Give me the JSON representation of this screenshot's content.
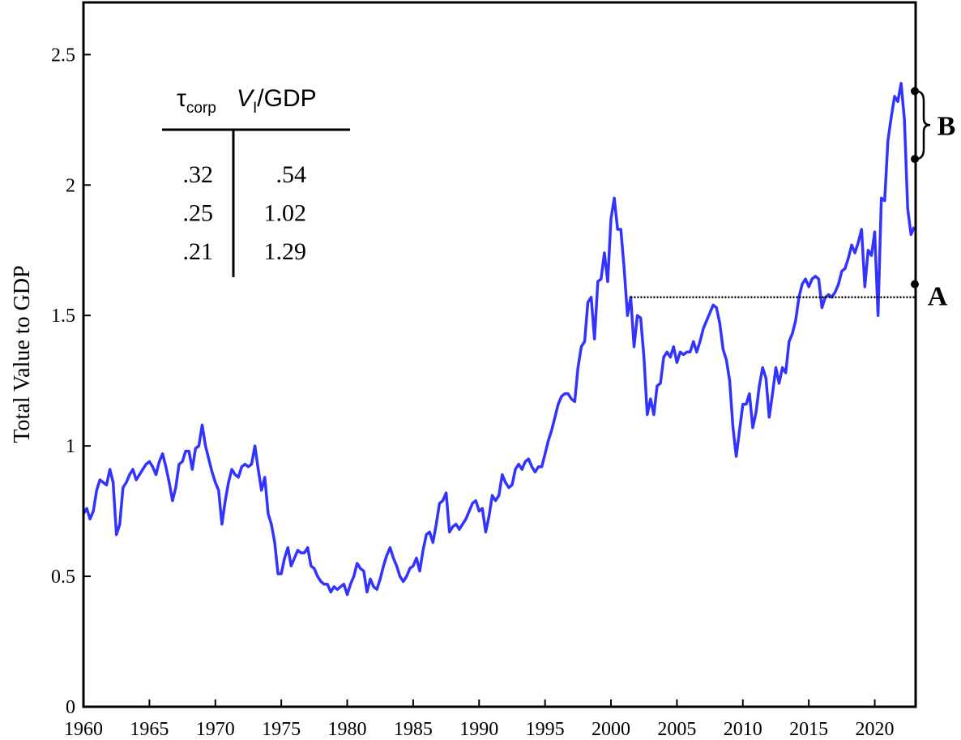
{
  "chart_data": {
    "type": "line",
    "y_label": "Total Value to GDP",
    "color": "#3333ff",
    "xlim": [
      1960,
      2023.1
    ],
    "ylim": [
      0,
      2.7
    ],
    "xticks": [
      1960,
      1965,
      1970,
      1975,
      1980,
      1985,
      1990,
      1995,
      2000,
      2005,
      2010,
      2015,
      2020
    ],
    "yticks": [
      0,
      0.5,
      1,
      1.5,
      2,
      2.5
    ],
    "x": [
      1960,
      1960.25,
      1960.5,
      1960.75,
      1961,
      1961.25,
      1961.5,
      1961.75,
      1962,
      1962.25,
      1962.5,
      1962.75,
      1963,
      1963.25,
      1963.5,
      1963.75,
      1964,
      1964.25,
      1964.5,
      1964.75,
      1965,
      1965.25,
      1965.5,
      1965.75,
      1966,
      1966.25,
      1966.5,
      1966.75,
      1967,
      1967.25,
      1967.5,
      1967.75,
      1968,
      1968.25,
      1968.5,
      1968.75,
      1969,
      1969.25,
      1969.5,
      1969.75,
      1970,
      1970.25,
      1970.5,
      1970.75,
      1971,
      1971.25,
      1971.5,
      1971.75,
      1972,
      1972.25,
      1972.5,
      1972.75,
      1973,
      1973.25,
      1973.5,
      1973.75,
      1974,
      1974.25,
      1974.5,
      1974.75,
      1975,
      1975.25,
      1975.5,
      1975.75,
      1976,
      1976.25,
      1976.5,
      1976.75,
      1977,
      1977.25,
      1977.5,
      1977.75,
      1978,
      1978.25,
      1978.5,
      1978.75,
      1979,
      1979.25,
      1979.5,
      1979.75,
      1980,
      1980.25,
      1980.5,
      1980.75,
      1981,
      1981.25,
      1981.5,
      1981.75,
      1982,
      1982.25,
      1982.5,
      1982.75,
      1983,
      1983.25,
      1983.5,
      1983.75,
      1984,
      1984.25,
      1984.5,
      1984.75,
      1985,
      1985.25,
      1985.5,
      1985.75,
      1986,
      1986.25,
      1986.5,
      1986.75,
      1987,
      1987.25,
      1987.5,
      1987.75,
      1988,
      1988.25,
      1988.5,
      1988.75,
      1989,
      1989.25,
      1989.5,
      1989.75,
      1990,
      1990.25,
      1990.5,
      1990.75,
      1991,
      1991.25,
      1991.5,
      1991.75,
      1992,
      1992.25,
      1992.5,
      1992.75,
      1993,
      1993.25,
      1993.5,
      1993.75,
      1994,
      1994.25,
      1994.5,
      1994.75,
      1995,
      1995.25,
      1995.5,
      1995.75,
      1996,
      1996.25,
      1996.5,
      1996.75,
      1997,
      1997.25,
      1997.5,
      1997.75,
      1998,
      1998.25,
      1998.5,
      1998.75,
      1999,
      1999.25,
      1999.5,
      1999.75,
      2000,
      2000.25,
      2000.5,
      2000.75,
      2001,
      2001.25,
      2001.5,
      2001.75,
      2002,
      2002.25,
      2002.5,
      2002.75,
      2003,
      2003.25,
      2003.5,
      2003.75,
      2004,
      2004.25,
      2004.5,
      2004.75,
      2005,
      2005.25,
      2005.5,
      2005.75,
      2006,
      2006.25,
      2006.5,
      2006.75,
      2007,
      2007.25,
      2007.5,
      2007.75,
      2008,
      2008.25,
      2008.5,
      2008.75,
      2009,
      2009.25,
      2009.5,
      2009.75,
      2010,
      2010.25,
      2010.5,
      2010.75,
      2011,
      2011.25,
      2011.5,
      2011.75,
      2012,
      2012.25,
      2012.5,
      2012.75,
      2013,
      2013.25,
      2013.5,
      2013.75,
      2014,
      2014.25,
      2014.5,
      2014.75,
      2015,
      2015.25,
      2015.5,
      2015.75,
      2016,
      2016.25,
      2016.5,
      2016.75,
      2017,
      2017.25,
      2017.5,
      2017.75,
      2018,
      2018.25,
      2018.5,
      2018.75,
      2019,
      2019.25,
      2019.5,
      2019.75,
      2020,
      2020.25,
      2020.5,
      2020.75,
      2021,
      2021.25,
      2021.5,
      2021.75,
      2022,
      2022.25,
      2022.5,
      2022.75,
      2023
    ],
    "values": [
      0.74,
      0.76,
      0.72,
      0.75,
      0.83,
      0.87,
      0.86,
      0.85,
      0.91,
      0.86,
      0.66,
      0.7,
      0.84,
      0.86,
      0.89,
      0.91,
      0.87,
      0.89,
      0.91,
      0.93,
      0.94,
      0.92,
      0.89,
      0.94,
      0.97,
      0.92,
      0.86,
      0.79,
      0.84,
      0.93,
      0.94,
      0.98,
      0.98,
      0.91,
      0.99,
      1.0,
      1.08,
      1.0,
      0.95,
      0.9,
      0.86,
      0.83,
      0.7,
      0.79,
      0.86,
      0.91,
      0.89,
      0.88,
      0.92,
      0.93,
      0.92,
      0.93,
      1.0,
      0.91,
      0.83,
      0.88,
      0.74,
      0.7,
      0.63,
      0.51,
      0.51,
      0.57,
      0.61,
      0.54,
      0.57,
      0.6,
      0.59,
      0.59,
      0.61,
      0.54,
      0.53,
      0.5,
      0.48,
      0.47,
      0.47,
      0.44,
      0.46,
      0.45,
      0.46,
      0.47,
      0.43,
      0.47,
      0.5,
      0.55,
      0.53,
      0.52,
      0.44,
      0.49,
      0.46,
      0.45,
      0.49,
      0.54,
      0.58,
      0.61,
      0.57,
      0.54,
      0.5,
      0.48,
      0.5,
      0.53,
      0.54,
      0.57,
      0.52,
      0.6,
      0.66,
      0.67,
      0.63,
      0.7,
      0.78,
      0.79,
      0.82,
      0.67,
      0.69,
      0.7,
      0.68,
      0.7,
      0.72,
      0.75,
      0.78,
      0.79,
      0.75,
      0.76,
      0.67,
      0.73,
      0.81,
      0.79,
      0.81,
      0.89,
      0.86,
      0.84,
      0.85,
      0.91,
      0.93,
      0.91,
      0.94,
      0.95,
      0.92,
      0.9,
      0.92,
      0.92,
      0.97,
      1.02,
      1.06,
      1.11,
      1.16,
      1.19,
      1.2,
      1.2,
      1.18,
      1.17,
      1.3,
      1.38,
      1.4,
      1.55,
      1.57,
      1.41,
      1.63,
      1.64,
      1.74,
      1.63,
      1.87,
      1.95,
      1.83,
      1.83,
      1.68,
      1.5,
      1.57,
      1.38,
      1.5,
      1.49,
      1.34,
      1.12,
      1.18,
      1.12,
      1.23,
      1.24,
      1.34,
      1.36,
      1.34,
      1.38,
      1.32,
      1.36,
      1.35,
      1.36,
      1.36,
      1.4,
      1.36,
      1.4,
      1.45,
      1.48,
      1.51,
      1.54,
      1.53,
      1.47,
      1.37,
      1.33,
      1.25,
      1.07,
      0.96,
      1.06,
      1.16,
      1.16,
      1.2,
      1.07,
      1.13,
      1.23,
      1.3,
      1.26,
      1.11,
      1.2,
      1.3,
      1.24,
      1.3,
      1.28,
      1.4,
      1.43,
      1.48,
      1.57,
      1.62,
      1.64,
      1.61,
      1.64,
      1.65,
      1.64,
      1.53,
      1.57,
      1.58,
      1.57,
      1.59,
      1.62,
      1.67,
      1.68,
      1.72,
      1.77,
      1.74,
      1.78,
      1.83,
      1.61,
      1.75,
      1.73,
      1.82,
      1.5,
      1.95,
      1.94,
      2.17,
      2.26,
      2.34,
      2.32,
      2.39,
      2.25,
      1.91,
      1.81,
      1.84
    ],
    "reference_line": {
      "value": 1.57,
      "x_start": 2001.5
    },
    "annotations": [
      {
        "label": "A",
        "value": 1.62
      },
      {
        "label": "B",
        "range": [
          2.1,
          2.36
        ]
      }
    ],
    "table": {
      "header": {
        "tau": "τ",
        "tau_sub": "corp",
        "v": "V",
        "v_sub": "I",
        "v_rest": "/GDP"
      },
      "rows": [
        [
          ".32",
          ".54"
        ],
        [
          ".25",
          "1.02"
        ],
        [
          ".21",
          "1.29"
        ]
      ]
    }
  }
}
